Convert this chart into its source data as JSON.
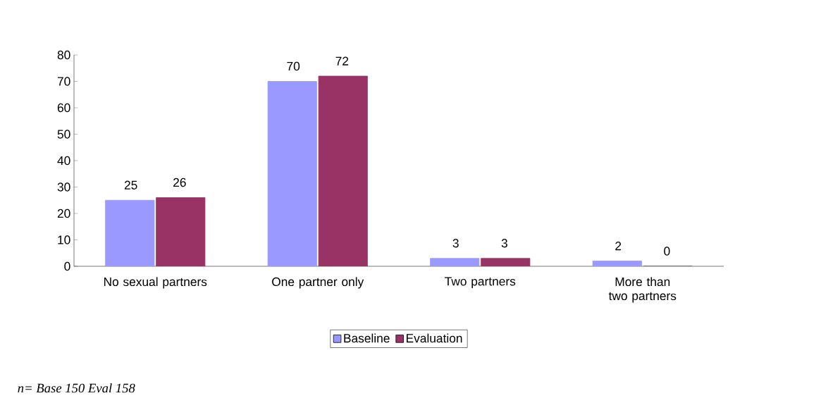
{
  "chart_data": {
    "type": "bar",
    "categories": [
      "No sexual partners",
      "One partner only",
      "Two partners",
      "More than two partners"
    ],
    "series": [
      {
        "name": "Baseline",
        "color": "#9999ff",
        "values": [
          25,
          70,
          3,
          2
        ]
      },
      {
        "name": "Evaluation",
        "color": "#993366",
        "values": [
          26,
          72,
          3,
          0
        ]
      }
    ],
    "ylim": [
      0,
      80
    ],
    "yticks": [
      0,
      10,
      20,
      30,
      40,
      50,
      60,
      70,
      80
    ],
    "data_labels": true,
    "grid": false,
    "legend": "bottom",
    "annotations": [
      "n= Base 150 Eval 158"
    ]
  }
}
